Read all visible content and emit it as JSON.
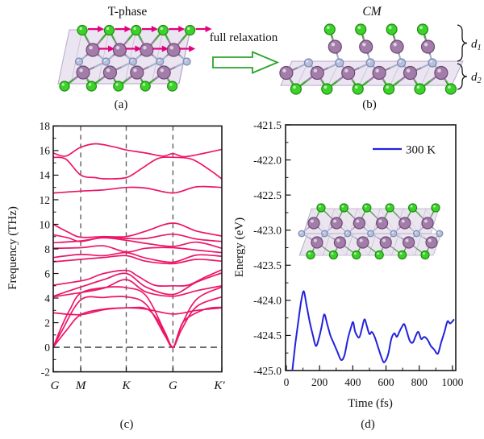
{
  "labels": {
    "panel_a_title": "T-phase",
    "panel_b_title": "CM",
    "relaxation_label": "full relaxation",
    "caption_a": "(a)",
    "caption_b": "(b)",
    "caption_c": "(c)",
    "caption_d": "(d)",
    "d1_base": "d",
    "d1_sub": "1",
    "d2_base": "d",
    "d2_sub": "2"
  },
  "colors": {
    "band_color": "#ed1567",
    "curve_color": "#2222dd",
    "dash_gray": "#5f5f5f",
    "big_arrow_color": "#2aa42a",
    "disp_arrow_color": "#e2017e",
    "cell_fill": "#e8dfee",
    "cell_stroke": "#b9a9c9",
    "atom_colors": {
      "green": {
        "fill": "#3bd329",
        "stroke": "#1f8711"
      },
      "purple": {
        "fill": "#a37daa",
        "stroke": "#6c4a72"
      },
      "blue": {
        "fill": "#b6c0dd",
        "stroke": "#7d8ab0"
      }
    },
    "bond_colors": {
      "green": "#46a83a",
      "purple": "#9c82a6",
      "blue": "#a9b2cf"
    }
  },
  "structures": {
    "a": {
      "frame": [
        [
          86,
          37
        ],
        [
          236,
          37
        ],
        [
          222,
          104
        ],
        [
          72,
          104
        ]
      ],
      "rows": {
        "green_top": {
          "y": 37.5,
          "x0": 102,
          "dx": 33.4,
          "n": 5,
          "r": 6
        },
        "purple_top": {
          "y": 62,
          "x0": 115,
          "dx": 33.4,
          "n": 4,
          "r": 8
        },
        "blue_mid": {
          "y": 76.5,
          "x0": 98,
          "dx": 33.4,
          "n": 5,
          "r": 4.5
        },
        "purple_bot": {
          "y": 90,
          "x0": 103,
          "dx": 33.4,
          "n": 4,
          "r": 8
        },
        "green_bot": {
          "y": 107,
          "x0": 80,
          "dx": 33.4,
          "n": 5,
          "r": 6
        }
      },
      "arrow_rows": [
        "green_top",
        "purple_top"
      ]
    },
    "b": {
      "frame": [
        [
          362,
          76
        ],
        [
          574,
          76
        ],
        [
          560,
          106
        ],
        [
          348,
          106
        ]
      ],
      "rows": {
        "green_top": {
          "y": 36.5,
          "x0": 408.8,
          "dx": 38.4,
          "n": 4,
          "r": 6.5
        },
        "purple_top": {
          "y": 58,
          "x0": 415.3,
          "dx": 38.4,
          "n": 4,
          "r": 8
        },
        "blue_mid": {
          "y": 78,
          "x0": 382.4,
          "dx": 38.4,
          "n": 5,
          "r": 5
        },
        "purple_bot": {
          "y": 90.5,
          "x0": 354.9,
          "dx": 38.4,
          "n": 6,
          "r": 8
        },
        "green_bot": {
          "y": 110.5,
          "x0": 366.9,
          "dx": 38.4,
          "n": 6,
          "r": 6.5
        }
      }
    },
    "inset": {
      "rows": {
        "green_top": {
          "y": 258,
          "x0": 398,
          "dx": 28.4,
          "n": 6,
          "r": 5
        },
        "purple_top": {
          "y": 277,
          "x0": 389,
          "dx": 28.2,
          "n": 6,
          "r": 7
        },
        "blue_mid": {
          "y": 290,
          "x0": 374,
          "dx": 28.5,
          "n": 7,
          "r": 3.8
        },
        "purple_bot": {
          "y": 301,
          "x0": 393,
          "dx": 28.4,
          "n": 6,
          "r": 7
        },
        "green_bot": {
          "y": 316.5,
          "x0": 385,
          "dx": 28.4,
          "n": 6,
          "r": 5
        }
      }
    }
  },
  "chart_data": [
    {
      "id": "phonon-dispersion",
      "type": "line",
      "ylabel": "Frequency (THz)",
      "ylim": [
        -2,
        18
      ],
      "yticks": [
        -2,
        0,
        2,
        4,
        6,
        8,
        10,
        12,
        14,
        16,
        18
      ],
      "x_path_labels": [
        "G",
        "M",
        "K",
        "G",
        "K′"
      ],
      "x_path_positions": [
        0,
        0.163,
        0.433,
        0.71,
        1
      ],
      "grid": "dashed-verticals-at-high-symmetry-points",
      "zero_line": 0,
      "series": [
        {
          "name": "band-1",
          "x": [
            0,
            0.075,
            0.16,
            0.25,
            0.36,
            0.433,
            0.55,
            0.65,
            0.71,
            0.78,
            0.9,
            1
          ],
          "y": [
            15.8,
            15.55,
            16.25,
            16.55,
            16.3,
            16.05,
            15.8,
            15.55,
            15.75,
            15.5,
            15.8,
            16.1
          ]
        },
        {
          "name": "band-2",
          "x": [
            0,
            0.075,
            0.163,
            0.25,
            0.31,
            0.433,
            0.52,
            0.62,
            0.71,
            0.82,
            0.92,
            1
          ],
          "y": [
            15.45,
            15.3,
            14.0,
            13.8,
            13.7,
            13.8,
            14.5,
            15.35,
            15.45,
            15.3,
            14.5,
            13.7
          ]
        },
        {
          "name": "band-3",
          "x": [
            0,
            0.163,
            0.3,
            0.433,
            0.55,
            0.71,
            0.85,
            1
          ],
          "y": [
            12.55,
            12.7,
            12.8,
            13.0,
            12.95,
            12.55,
            13.05,
            13.0
          ]
        },
        {
          "name": "band-4",
          "x": [
            0,
            0.09,
            0.163,
            0.3,
            0.433,
            0.55,
            0.71,
            0.85,
            1
          ],
          "y": [
            10.0,
            9.35,
            8.95,
            9.0,
            9.0,
            9.45,
            10.1,
            9.45,
            9.05
          ]
        },
        {
          "name": "band-5",
          "x": [
            0,
            0.09,
            0.163,
            0.3,
            0.433,
            0.55,
            0.71,
            0.85,
            1
          ],
          "y": [
            9.15,
            8.9,
            8.6,
            8.95,
            8.85,
            8.85,
            9.2,
            8.8,
            8.6
          ]
        },
        {
          "name": "band-6",
          "x": [
            0,
            0.163,
            0.3,
            0.433,
            0.55,
            0.71,
            0.85,
            1
          ],
          "y": [
            8.5,
            8.65,
            8.9,
            8.7,
            8.45,
            8.2,
            8.55,
            8.05
          ]
        },
        {
          "name": "band-7",
          "x": [
            0,
            0.163,
            0.3,
            0.433,
            0.55,
            0.71,
            0.85,
            1
          ],
          "y": [
            8.05,
            8.1,
            8.25,
            7.75,
            8.05,
            8.1,
            7.9,
            7.7
          ]
        },
        {
          "name": "band-8",
          "x": [
            0,
            0.163,
            0.3,
            0.433,
            0.55,
            0.71,
            0.85,
            1
          ],
          "y": [
            7.3,
            7.55,
            7.45,
            7.7,
            7.25,
            6.92,
            7.5,
            7.4
          ]
        },
        {
          "name": "band-9",
          "x": [
            0,
            0.163,
            0.3,
            0.433,
            0.55,
            0.71,
            0.85,
            1
          ],
          "y": [
            6.95,
            7.15,
            7.3,
            7.45,
            7.0,
            6.8,
            7.15,
            7.0
          ]
        },
        {
          "name": "band-10",
          "x": [
            0,
            0.12,
            0.2,
            0.3,
            0.433,
            0.5,
            0.6,
            0.71,
            0.8,
            0.9,
            1
          ],
          "y": [
            5.05,
            5.3,
            5.5,
            6.0,
            6.25,
            5.8,
            5.05,
            5.0,
            5.05,
            5.7,
            6.3
          ]
        },
        {
          "name": "band-11",
          "x": [
            0,
            0.163,
            0.3,
            0.433,
            0.55,
            0.71,
            0.85,
            1
          ],
          "y": [
            4.15,
            4.9,
            5.5,
            6.0,
            4.9,
            4.3,
            5.3,
            6.05
          ]
        },
        {
          "name": "band-12",
          "x": [
            0,
            0.163,
            0.3,
            0.433,
            0.55,
            0.71,
            0.85,
            1
          ],
          "y": [
            4.1,
            4.45,
            4.8,
            5.5,
            4.5,
            4.15,
            4.6,
            5.0
          ]
        },
        {
          "name": "band-13",
          "x": [
            0,
            0.163,
            0.3,
            0.433,
            0.55,
            0.71,
            0.85,
            1
          ],
          "y": [
            2.8,
            2.65,
            3.05,
            3.2,
            3.1,
            2.7,
            3.0,
            3.2
          ]
        },
        {
          "name": "acoustic-1",
          "x": [
            0,
            0.05,
            0.1,
            0.163,
            0.3,
            0.433,
            0.55,
            0.66,
            0.71,
            0.755,
            0.85,
            1
          ],
          "y": [
            0,
            1.7,
            3.1,
            4.4,
            4.85,
            4.85,
            4.2,
            1.3,
            0,
            1.6,
            3.9,
            4.9
          ]
        },
        {
          "name": "acoustic-2",
          "x": [
            0,
            0.05,
            0.163,
            0.3,
            0.433,
            0.55,
            0.66,
            0.71,
            0.76,
            0.85,
            1
          ],
          "y": [
            0,
            1.3,
            3.85,
            4.05,
            4.1,
            3.5,
            1.0,
            0,
            1.4,
            3.3,
            4.1
          ]
        },
        {
          "name": "acoustic-3",
          "x": [
            0,
            0.08,
            0.163,
            0.3,
            0.433,
            0.55,
            0.62,
            0.665,
            0.71,
            0.74,
            0.78,
            0.9,
            1
          ],
          "y": [
            0,
            1.4,
            2.65,
            3.1,
            3.2,
            3.15,
            2.2,
            1.0,
            0,
            1.0,
            2.2,
            3.1,
            3.25
          ]
        }
      ]
    },
    {
      "id": "md-energy",
      "type": "line",
      "xlabel": "Time (fs)",
      "ylabel": "Energy (eV)",
      "xlim": [
        0,
        1020
      ],
      "ylim": [
        -425.0,
        -421.5
      ],
      "xticks": [
        0,
        200,
        400,
        600,
        800,
        1000
      ],
      "yticks": [
        -425.0,
        -424.5,
        -424.0,
        -423.5,
        -423.0,
        -422.5,
        -422.0,
        -421.5
      ],
      "ytick_labels": [
        "-425.0",
        "-424.5",
        "-424.0",
        "-423.5",
        "-423.0",
        "-422.5",
        "-422.0",
        "-421.5"
      ],
      "legend": [
        {
          "label": "300 K",
          "color": "#2222dd"
        }
      ],
      "legend_position": "upper-right",
      "series": [
        {
          "name": "300 K",
          "x": [
            36,
            55,
            75,
            90,
            105,
            120,
            140,
            160,
            178,
            195,
            212,
            228,
            245,
            265,
            283,
            305,
            330,
            350,
            370,
            390,
            402,
            415,
            438,
            455,
            470,
            485,
            500,
            515,
            532,
            550,
            568,
            585,
            600,
            615,
            632,
            650,
            665,
            680,
            695,
            710,
            726,
            744,
            762,
            780,
            795,
            812,
            830,
            850,
            870,
            890,
            912,
            932,
            952,
            970,
            985,
            1000,
            1010
          ],
          "y": [
            -425.0,
            -424.6,
            -424.25,
            -424.0,
            -423.87,
            -424.05,
            -424.3,
            -424.5,
            -424.65,
            -424.55,
            -424.38,
            -424.2,
            -424.33,
            -424.5,
            -424.6,
            -424.72,
            -424.85,
            -424.78,
            -424.55,
            -424.38,
            -424.31,
            -424.45,
            -424.53,
            -424.4,
            -424.27,
            -424.37,
            -424.48,
            -424.45,
            -424.52,
            -424.65,
            -424.78,
            -424.88,
            -424.85,
            -424.75,
            -424.55,
            -424.47,
            -424.52,
            -424.45,
            -424.38,
            -424.34,
            -424.45,
            -424.58,
            -424.6,
            -424.5,
            -424.45,
            -424.55,
            -424.52,
            -424.56,
            -424.65,
            -424.7,
            -424.76,
            -424.6,
            -424.45,
            -424.3,
            -424.33,
            -424.3,
            -424.27
          ]
        }
      ]
    }
  ],
  "legend_text": "300 K"
}
